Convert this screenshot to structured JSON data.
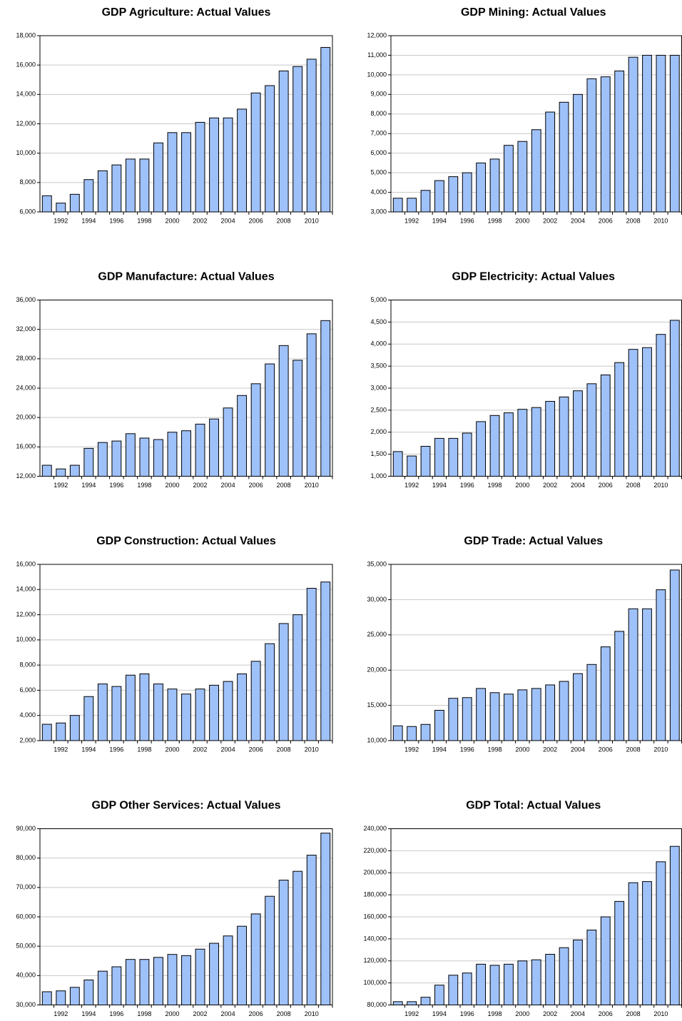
{
  "chart_data": [
    {
      "type": "bar",
      "title": "GDP Agriculture: Actual Values",
      "color": "#9fc1f9",
      "grid": true,
      "categories": [
        null,
        "1992",
        null,
        "1994",
        null,
        "1996",
        null,
        "1998",
        null,
        "2000",
        null,
        "2002",
        null,
        "2004",
        null,
        "2006",
        null,
        "2008",
        null,
        "2010",
        null
      ],
      "values": [
        7100,
        6600,
        7200,
        8200,
        8800,
        9200,
        9600,
        9600,
        10700,
        11400,
        11400,
        12100,
        12400,
        12400,
        13000,
        14100,
        14600,
        15600,
        15900,
        16400,
        17200
      ],
      "ylim": [
        6000,
        18000
      ],
      "yticks": [
        {
          "value": 6000,
          "label": "6,000"
        },
        {
          "value": 8000,
          "label": "8,000"
        },
        {
          "value": 10000,
          "label": "10,000"
        },
        {
          "value": 12000,
          "label": "12,000"
        },
        {
          "value": 14000,
          "label": "14,000"
        },
        {
          "value": 16000,
          "label": "16,000"
        },
        {
          "value": 18000,
          "label": "18,000"
        }
      ]
    },
    {
      "type": "bar",
      "title": "GDP Mining: Actual Values",
      "color": "#9fc1f9",
      "grid": true,
      "categories": [
        null,
        "1992",
        null,
        "1994",
        null,
        "1996",
        null,
        "1998",
        null,
        "2000",
        null,
        "2002",
        null,
        "2004",
        null,
        "2006",
        null,
        "2008",
        null,
        "2010",
        null
      ],
      "values": [
        3700,
        3700,
        4100,
        4600,
        4800,
        5000,
        5500,
        5700,
        6400,
        6600,
        7200,
        8100,
        8600,
        9000,
        9800,
        9900,
        10200,
        10900,
        11000,
        11000,
        11000
      ],
      "ylim": [
        3000,
        12000
      ],
      "yticks": [
        {
          "value": 3000,
          "label": "3,000"
        },
        {
          "value": 4000,
          "label": "4,000"
        },
        {
          "value": 5000,
          "label": "5,000"
        },
        {
          "value": 6000,
          "label": "6,000"
        },
        {
          "value": 7000,
          "label": "7,000"
        },
        {
          "value": 8000,
          "label": "8,000"
        },
        {
          "value": 9000,
          "label": "9,000"
        },
        {
          "value": 10000,
          "label": "10,000"
        },
        {
          "value": 11000,
          "label": "11,000"
        },
        {
          "value": 12000,
          "label": "12,000"
        }
      ]
    },
    {
      "type": "bar",
      "title": "GDP Manufacture: Actual Values",
      "color": "#9fc1f9",
      "grid": true,
      "categories": [
        null,
        "1992",
        null,
        "1994",
        null,
        "1996",
        null,
        "1998",
        null,
        "2000",
        null,
        "2002",
        null,
        "2004",
        null,
        "2006",
        null,
        "2008",
        null,
        "2010",
        null
      ],
      "values": [
        13500,
        13000,
        13500,
        15800,
        16600,
        16800,
        17800,
        17200,
        17000,
        18000,
        18200,
        19100,
        19800,
        21300,
        23000,
        24600,
        27300,
        29800,
        27800,
        31400,
        33200
      ],
      "ylim": [
        12000,
        36000
      ],
      "yticks": [
        {
          "value": 12000,
          "label": "12,000"
        },
        {
          "value": 16000,
          "label": "16,000"
        },
        {
          "value": 20000,
          "label": "20,000"
        },
        {
          "value": 24000,
          "label": "24,000"
        },
        {
          "value": 28000,
          "label": "28,000"
        },
        {
          "value": 32000,
          "label": "32,000"
        },
        {
          "value": 36000,
          "label": "36,000"
        }
      ]
    },
    {
      "type": "bar",
      "title": "GDP Electricity: Actual Values",
      "color": "#9fc1f9",
      "grid": true,
      "categories": [
        null,
        "1992",
        null,
        "1994",
        null,
        "1996",
        null,
        "1998",
        null,
        "2000",
        null,
        "2002",
        null,
        "2004",
        null,
        "2006",
        null,
        "2008",
        null,
        "2010",
        null
      ],
      "values": [
        1560,
        1460,
        1680,
        1860,
        1860,
        1980,
        2240,
        2380,
        2440,
        2520,
        2560,
        2700,
        2800,
        2940,
        3100,
        3300,
        3580,
        3880,
        3920,
        4220,
        4540
      ],
      "ylim": [
        1000,
        5000
      ],
      "yticks": [
        {
          "value": 1000,
          "label": "1,000"
        },
        {
          "value": 1500,
          "label": "1,500"
        },
        {
          "value": 2000,
          "label": "2,000"
        },
        {
          "value": 2500,
          "label": "2,500"
        },
        {
          "value": 3000,
          "label": "3,000"
        },
        {
          "value": 3500,
          "label": "3,500"
        },
        {
          "value": 4000,
          "label": "4,000"
        },
        {
          "value": 4500,
          "label": "4,500"
        },
        {
          "value": 5000,
          "label": "5,000"
        }
      ]
    },
    {
      "type": "bar",
      "title": "GDP Construction: Actual Values",
      "color": "#9fc1f9",
      "grid": true,
      "categories": [
        null,
        "1992",
        null,
        "1994",
        null,
        "1996",
        null,
        "1998",
        null,
        "2000",
        null,
        "2002",
        null,
        "2004",
        null,
        "2006",
        null,
        "2008",
        null,
        "2010",
        null
      ],
      "values": [
        3300,
        3400,
        4000,
        5500,
        6500,
        6300,
        7200,
        7300,
        6500,
        6100,
        5700,
        6100,
        6400,
        6700,
        7300,
        8300,
        9700,
        11300,
        12000,
        14100,
        14600
      ],
      "ylim": [
        2000,
        16000
      ],
      "yticks": [
        {
          "value": 2000,
          "label": "2,000"
        },
        {
          "value": 4000,
          "label": "4,000"
        },
        {
          "value": 6000,
          "label": "6,000"
        },
        {
          "value": 8000,
          "label": "8,000"
        },
        {
          "value": 10000,
          "label": "10,000"
        },
        {
          "value": 12000,
          "label": "12,000"
        },
        {
          "value": 14000,
          "label": "14,000"
        },
        {
          "value": 16000,
          "label": "16,000"
        }
      ]
    },
    {
      "type": "bar",
      "title": "GDP Trade: Actual Values",
      "color": "#9fc1f9",
      "grid": true,
      "categories": [
        null,
        "1992",
        null,
        "1994",
        null,
        "1996",
        null,
        "1998",
        null,
        "2000",
        null,
        "2002",
        null,
        "2004",
        null,
        "2006",
        null,
        "2008",
        null,
        "2010",
        null
      ],
      "values": [
        12100,
        12000,
        12300,
        14300,
        16000,
        16100,
        17400,
        16800,
        16600,
        17200,
        17400,
        17900,
        18400,
        19500,
        20800,
        23300,
        25500,
        28700,
        28700,
        31400,
        34200
      ],
      "ylim": [
        10000,
        35000
      ],
      "yticks": [
        {
          "value": 10000,
          "label": "10,000"
        },
        {
          "value": 15000,
          "label": "15,000"
        },
        {
          "value": 20000,
          "label": "20,000"
        },
        {
          "value": 25000,
          "label": "25,000"
        },
        {
          "value": 30000,
          "label": "30,000"
        },
        {
          "value": 35000,
          "label": "35,000"
        }
      ]
    },
    {
      "type": "bar",
      "title": "GDP Other Services: Actual Values",
      "color": "#9fc1f9",
      "grid": true,
      "categories": [
        null,
        "1992",
        null,
        "1994",
        null,
        "1996",
        null,
        "1998",
        null,
        "2000",
        null,
        "2002",
        null,
        "2004",
        null,
        "2006",
        null,
        "2008",
        null,
        "2010",
        null
      ],
      "values": [
        34500,
        34800,
        36000,
        38500,
        41500,
        43000,
        45500,
        45500,
        46200,
        47200,
        46800,
        49000,
        51000,
        53500,
        56800,
        61000,
        67000,
        72500,
        75500,
        81000,
        88500
      ],
      "ylim": [
        30000,
        90000
      ],
      "yticks": [
        {
          "value": 30000,
          "label": "30,000"
        },
        {
          "value": 40000,
          "label": "40,000"
        },
        {
          "value": 50000,
          "label": "50,000"
        },
        {
          "value": 60000,
          "label": "60,000"
        },
        {
          "value": 70000,
          "label": "70,000"
        },
        {
          "value": 80000,
          "label": "80,000"
        },
        {
          "value": 90000,
          "label": "90,000"
        }
      ]
    },
    {
      "type": "bar",
      "title": "GDP Total: Actual Values",
      "color": "#9fc1f9",
      "grid": true,
      "categories": [
        null,
        "1992",
        null,
        "1994",
        null,
        "1996",
        null,
        "1998",
        null,
        "2000",
        null,
        "2002",
        null,
        "2004",
        null,
        "2006",
        null,
        "2008",
        null,
        "2010",
        null
      ],
      "values": [
        83000,
        83000,
        87000,
        98000,
        107000,
        109000,
        117000,
        116000,
        117000,
        120000,
        121000,
        126000,
        132000,
        139000,
        148000,
        160000,
        174000,
        191000,
        192000,
        210000,
        224000
      ],
      "ylim": [
        80000,
        240000
      ],
      "yticks": [
        {
          "value": 80000,
          "label": "80,000"
        },
        {
          "value": 100000,
          "label": "100,000"
        },
        {
          "value": 120000,
          "label": "120,000"
        },
        {
          "value": 140000,
          "label": "140,000"
        },
        {
          "value": 160000,
          "label": "160,000"
        },
        {
          "value": 180000,
          "label": "180,000"
        },
        {
          "value": 200000,
          "label": "200,000"
        },
        {
          "value": 220000,
          "label": "220,000"
        },
        {
          "value": 240000,
          "label": "240,000"
        }
      ]
    }
  ]
}
